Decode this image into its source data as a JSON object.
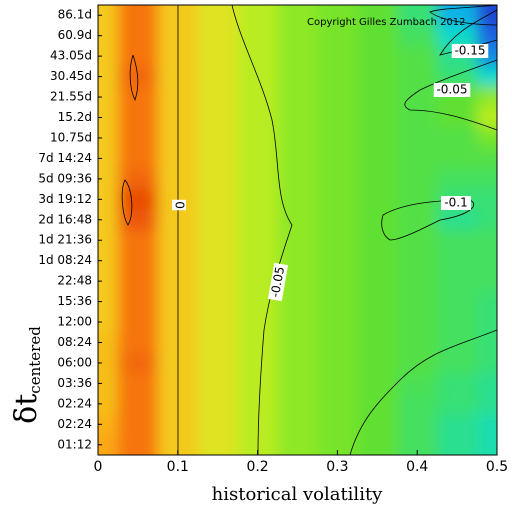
{
  "chart_data": {
    "type": "heatmap",
    "x_label": "historical volatility",
    "y_label": "δt",
    "y_label_subscript": "centered",
    "copyright": "Copyright Gilles Zumbach 2012",
    "categories": [
      "86.1d",
      "60.9d",
      "43.05d",
      "30.45d",
      "21.55d",
      "15.2d",
      "10.75d",
      "7d 14:24",
      "5d 09:36",
      "3d 19:12",
      "2d 16:48",
      "1d 21:36",
      "1d 08:24",
      "22:48",
      "15:36",
      "12:00",
      "08:24",
      "06:00",
      "03:36",
      "02:24",
      "02:24",
      "01:12"
    ],
    "x": [
      0,
      0.05,
      0.1,
      0.15,
      0.2,
      0.25,
      0.3,
      0.35,
      0.4,
      0.45,
      0.5
    ],
    "xlim": [
      0,
      0.5
    ],
    "xticks": [
      0,
      0.1,
      0.2,
      0.3,
      0.4,
      0.5
    ],
    "zlim": [
      -0.2,
      0.08
    ],
    "colormap": [
      "#101080",
      "#2050e0",
      "#00d8e8",
      "#30e080",
      "#60e030",
      "#b0ee20",
      "#f0e020",
      "#ff9010",
      "#e03000"
    ],
    "z": [
      [
        0.02,
        0.055,
        0.02,
        0.0,
        -0.02,
        -0.04,
        -0.05,
        -0.06,
        -0.09,
        -0.14,
        -0.17
      ],
      [
        0.02,
        0.055,
        0.02,
        0.0,
        -0.02,
        -0.04,
        -0.05,
        -0.06,
        -0.08,
        -0.12,
        -0.16
      ],
      [
        0.02,
        0.055,
        0.02,
        0.0,
        -0.02,
        -0.04,
        -0.05,
        -0.06,
        -0.07,
        -0.1,
        -0.15
      ],
      [
        0.02,
        0.06,
        0.02,
        0.0,
        -0.02,
        -0.04,
        -0.05,
        -0.06,
        -0.07,
        -0.09,
        -0.12
      ],
      [
        0.02,
        0.055,
        0.02,
        0.0,
        -0.02,
        -0.04,
        -0.05,
        -0.06,
        -0.07,
        -0.06,
        -0.04
      ],
      [
        0.02,
        0.055,
        0.02,
        0.0,
        -0.02,
        -0.04,
        -0.05,
        -0.06,
        -0.07,
        -0.06,
        -0.02
      ],
      [
        0.02,
        0.055,
        0.02,
        0.0,
        -0.02,
        -0.04,
        -0.05,
        -0.06,
        -0.07,
        -0.07,
        -0.05
      ],
      [
        0.02,
        0.055,
        0.02,
        0.0,
        -0.02,
        -0.04,
        -0.05,
        -0.06,
        -0.07,
        -0.07,
        -0.07
      ],
      [
        0.02,
        0.06,
        0.02,
        0.0,
        -0.02,
        -0.04,
        -0.05,
        -0.06,
        -0.07,
        -0.08,
        -0.08
      ],
      [
        0.02,
        0.07,
        0.02,
        0.0,
        -0.02,
        -0.04,
        -0.05,
        -0.06,
        -0.07,
        -0.09,
        -0.09
      ],
      [
        0.02,
        0.065,
        0.02,
        0.0,
        -0.02,
        -0.04,
        -0.05,
        -0.06,
        -0.07,
        -0.1,
        -0.09
      ],
      [
        0.02,
        0.055,
        0.02,
        0.0,
        -0.02,
        -0.04,
        -0.05,
        -0.06,
        -0.07,
        -0.08,
        -0.08
      ],
      [
        0.02,
        0.055,
        0.02,
        0.0,
        -0.02,
        -0.04,
        -0.05,
        -0.06,
        -0.07,
        -0.08,
        -0.08
      ],
      [
        0.02,
        0.055,
        0.02,
        0.0,
        -0.02,
        -0.04,
        -0.05,
        -0.06,
        -0.07,
        -0.08,
        -0.08
      ],
      [
        0.02,
        0.055,
        0.02,
        0.0,
        -0.02,
        -0.04,
        -0.05,
        -0.06,
        -0.07,
        -0.08,
        -0.09
      ],
      [
        0.02,
        0.055,
        0.02,
        0.0,
        -0.02,
        -0.04,
        -0.05,
        -0.06,
        -0.07,
        -0.08,
        -0.09
      ],
      [
        0.025,
        0.055,
        0.02,
        0.0,
        -0.02,
        -0.04,
        -0.05,
        -0.06,
        -0.07,
        -0.08,
        -0.09
      ],
      [
        0.025,
        0.06,
        0.02,
        0.0,
        -0.02,
        -0.04,
        -0.05,
        -0.06,
        -0.07,
        -0.08,
        -0.09
      ],
      [
        0.025,
        0.055,
        0.02,
        0.0,
        -0.02,
        -0.04,
        -0.05,
        -0.06,
        -0.075,
        -0.09,
        -0.1
      ],
      [
        0.025,
        0.055,
        0.02,
        0.0,
        -0.02,
        -0.04,
        -0.05,
        -0.06,
        -0.08,
        -0.09,
        -0.1
      ],
      [
        0.03,
        0.055,
        0.02,
        0.0,
        -0.02,
        -0.04,
        -0.05,
        -0.06,
        -0.08,
        -0.1,
        -0.11
      ],
      [
        0.035,
        0.055,
        0.02,
        0.0,
        -0.02,
        -0.04,
        -0.05,
        -0.06,
        -0.08,
        -0.1,
        -0.11
      ]
    ],
    "contour_labels": [
      0,
      -0.05,
      -0.1,
      -0.05,
      -0.15
    ]
  }
}
